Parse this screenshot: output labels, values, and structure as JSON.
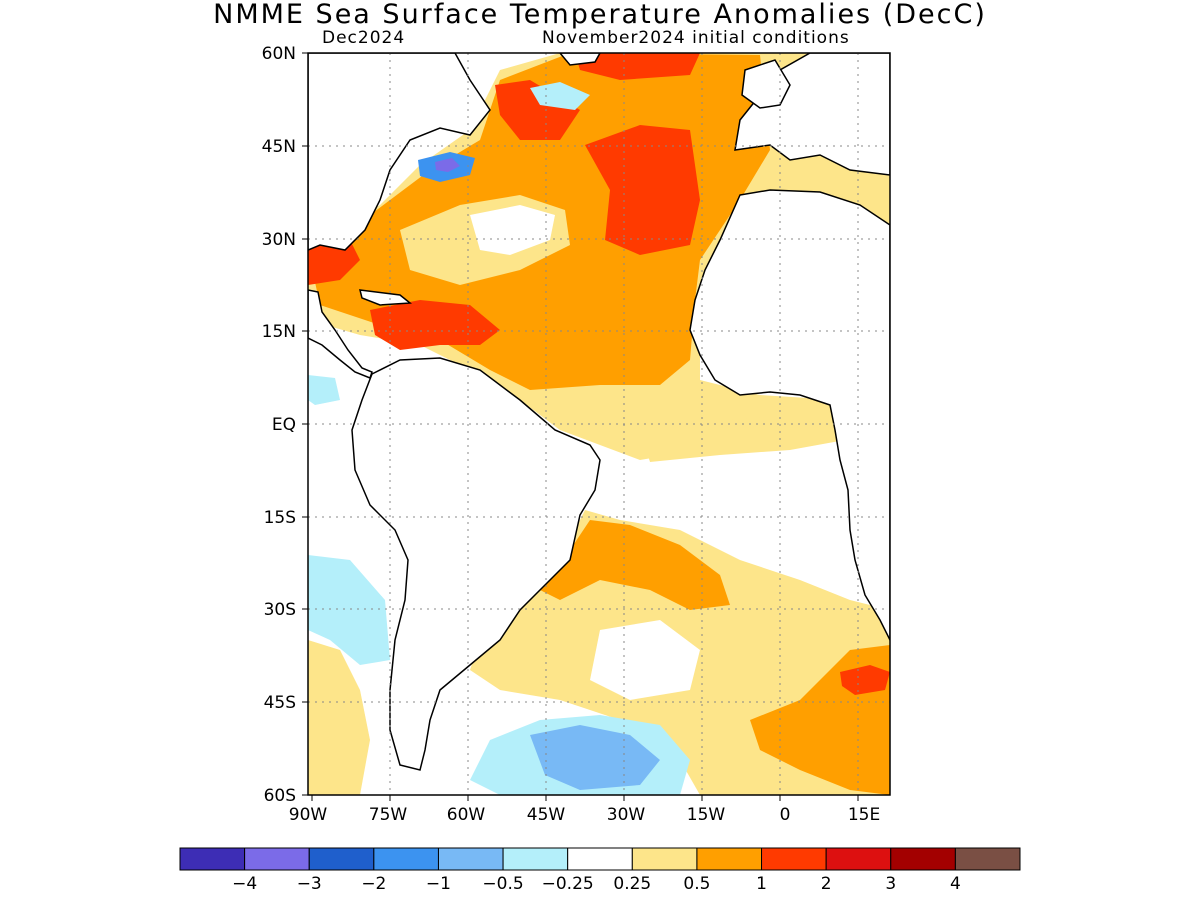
{
  "title": "NMME Sea Surface Temperature Anomalies (DecC)",
  "subtitle_left": "Dec2024",
  "subtitle_right": "November2024 initial conditions",
  "map": {
    "lon_range": [
      -90,
      22
    ],
    "lat_range": [
      -60,
      60
    ],
    "lat_labels": [
      "60N",
      "45N",
      "30N",
      "15N",
      "EQ",
      "15S",
      "30S",
      "45S",
      "60S"
    ],
    "lon_labels": [
      "90W",
      "75W",
      "60W",
      "45W",
      "30W",
      "15W",
      "0",
      "15E"
    ],
    "land_color": "#ffffff",
    "coastline_color": "#000000",
    "grid": "dotted"
  },
  "colorbar": {
    "colors": [
      "#3d2db5",
      "#7b6be8",
      "#1f5fcc",
      "#3c93f0",
      "#78b9f5",
      "#b4effa",
      "#ffffff",
      "#fde58a",
      "#ff9f00",
      "#ff3a00",
      "#dd1010",
      "#a30000",
      "#7a4f44"
    ],
    "labels": [
      "−4",
      "−3",
      "−2",
      "−1",
      "−0.5",
      "−0.25",
      "0.25",
      "0.5",
      "1",
      "2",
      "3",
      "4"
    ]
  }
}
